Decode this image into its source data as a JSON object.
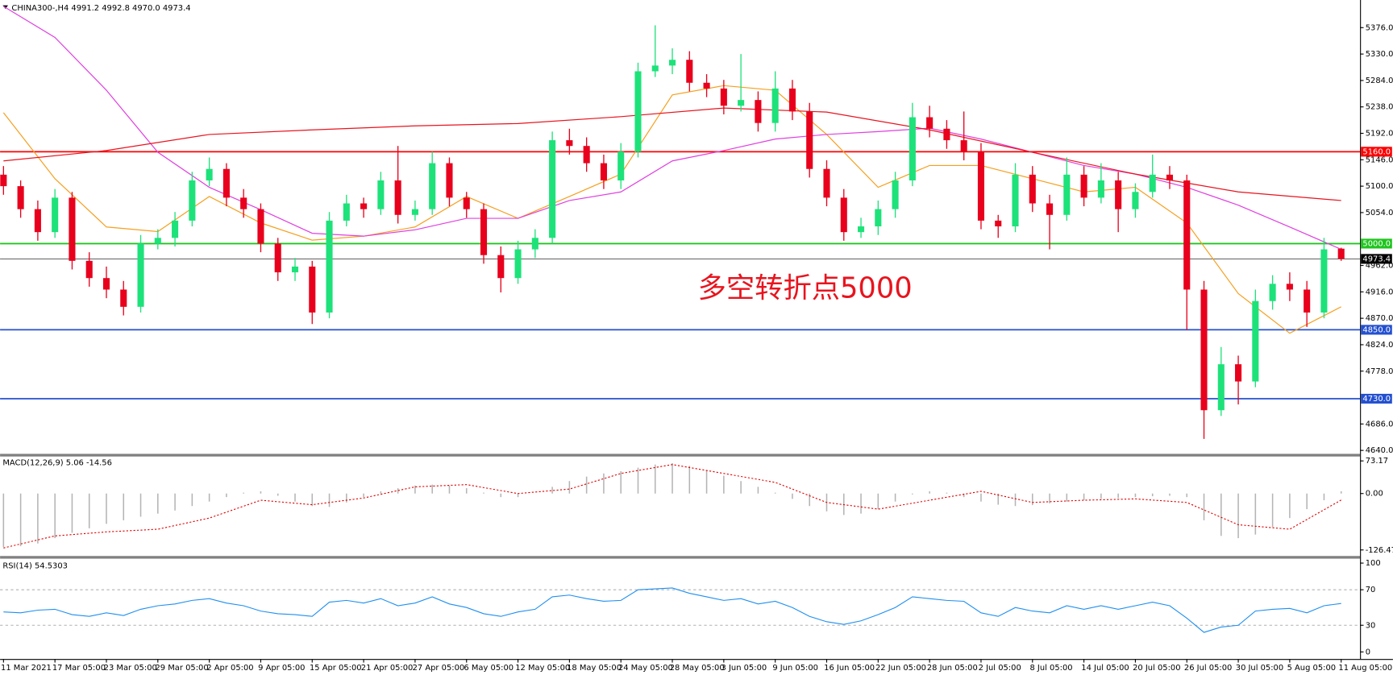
{
  "chart_data": [
    {
      "type": "candlestick",
      "title": "CHINA300-,H4  4991.2 4992.8 4970.0 4973.4",
      "annotation": "多空转折点5000",
      "annotation_color": "#e8141e",
      "up_color": "#1de27a",
      "down_color": "#e8001c",
      "xlim": [
        -0.2,
        79.1
      ],
      "ylim": [
        4634,
        5421
      ],
      "yticks": [
        {
          "value": 5376,
          "label": "5376.0"
        },
        {
          "value": 5330,
          "label": "5330.0"
        },
        {
          "value": 5284,
          "label": "5284.0"
        },
        {
          "value": 5238,
          "label": "5238.0"
        },
        {
          "value": 5192,
          "label": "5192.0"
        },
        {
          "value": 5146,
          "label": "5146.0"
        },
        {
          "value": 5100,
          "label": "5100.0"
        },
        {
          "value": 5054,
          "label": "5054.0"
        },
        {
          "value": 4962,
          "label": "4962.0"
        },
        {
          "value": 4916,
          "label": "4916.0"
        },
        {
          "value": 4870,
          "label": "4870.0"
        },
        {
          "value": 4824,
          "label": "4824.0"
        },
        {
          "value": 4778,
          "label": "4778.0"
        },
        {
          "value": 4686,
          "label": "4686.0"
        },
        {
          "value": 4640,
          "label": "4640.0"
        }
      ],
      "levels": [
        {
          "value": 5160,
          "label": "5160.0",
          "color": "#ff0000",
          "width": 1.6
        },
        {
          "value": 5000,
          "label": "5000.0",
          "color": "#1fc41f",
          "width": 1.6
        },
        {
          "value": 4973.4,
          "label": "4973.4",
          "color": "#000000",
          "width": 0.6
        },
        {
          "value": 4850,
          "label": "4850.0",
          "color": "#2450d0",
          "width": 1.6
        },
        {
          "value": 4730,
          "label": "4730.0",
          "color": "#2450d0",
          "width": 1.6
        }
      ],
      "series": [
        {
          "color": "#f5a020",
          "x": [
            0,
            3,
            6,
            9,
            12,
            15,
            18,
            21,
            24,
            27,
            30,
            33,
            36,
            39,
            42,
            45,
            48,
            51,
            54,
            57,
            60,
            63,
            66,
            69,
            72,
            75,
            78
          ],
          "values": [
            5228,
            5113,
            5029,
            5021,
            5082,
            5036,
            5006,
            5013,
            5029,
            5082,
            5044,
            5082,
            5121,
            5259,
            5275,
            5267,
            5190,
            5098,
            5136,
            5136,
            5113,
            5090,
            5098,
            5036,
            4913,
            4844,
            4890
          ]
        },
        {
          "color": "#e040e0",
          "x": [
            0,
            3,
            6,
            9,
            12,
            15,
            18,
            21,
            24,
            27,
            30,
            33,
            36,
            39,
            42,
            45,
            48,
            51,
            54,
            57,
            60,
            63,
            66,
            69,
            72,
            75,
            78
          ],
          "values": [
            5413,
            5359,
            5267,
            5159,
            5098,
            5059,
            5018,
            5013,
            5024,
            5044,
            5044,
            5075,
            5090,
            5144,
            5162,
            5182,
            5190,
            5195,
            5201,
            5182,
            5159,
            5136,
            5121,
            5098,
            5067,
            5029,
            4990
          ]
        },
        {
          "color": "#e8141e",
          "x": [
            0,
            6,
            12,
            18,
            24,
            30,
            36,
            42,
            48,
            54,
            60,
            66,
            72,
            78
          ],
          "values": [
            5144,
            5162,
            5190,
            5198,
            5205,
            5209,
            5221,
            5236,
            5229,
            5198,
            5159,
            5121,
            5090,
            5075
          ]
        }
      ],
      "candles": [
        [
          5120,
          5135,
          5085,
          5100
        ],
        [
          5100,
          5110,
          5045,
          5060
        ],
        [
          5060,
          5075,
          5005,
          5020
        ],
        [
          5020,
          5095,
          5010,
          5080
        ],
        [
          5080,
          5090,
          4955,
          4970
        ],
        [
          4970,
          4985,
          4925,
          4940
        ],
        [
          4940,
          4960,
          4905,
          4920
        ],
        [
          4920,
          4935,
          4875,
          4890
        ],
        [
          4890,
          5015,
          4880,
          5000
        ],
        [
          5000,
          5025,
          4990,
          5010
        ],
        [
          5010,
          5055,
          4995,
          5040
        ],
        [
          5040,
          5125,
          5030,
          5110
        ],
        [
          5110,
          5150,
          5100,
          5130
        ],
        [
          5130,
          5140,
          5065,
          5080
        ],
        [
          5080,
          5095,
          5045,
          5060
        ],
        [
          5060,
          5070,
          4985,
          5000
        ],
        [
          5000,
          5010,
          4935,
          4950
        ],
        [
          4950,
          4975,
          4935,
          4960
        ],
        [
          4960,
          4970,
          4860,
          4880
        ],
        [
          4880,
          5055,
          4870,
          5040
        ],
        [
          5040,
          5085,
          5030,
          5070
        ],
        [
          5070,
          5080,
          5045,
          5060
        ],
        [
          5060,
          5125,
          5050,
          5110
        ],
        [
          5110,
          5170,
          5035,
          5050
        ],
        [
          5050,
          5075,
          5040,
          5060
        ],
        [
          5060,
          5160,
          5050,
          5140
        ],
        [
          5140,
          5150,
          5065,
          5080
        ],
        [
          5080,
          5090,
          5045,
          5060
        ],
        [
          5060,
          5070,
          4965,
          4980
        ],
        [
          4980,
          4995,
          4915,
          4940
        ],
        [
          4940,
          5005,
          4930,
          4990
        ],
        [
          4990,
          5025,
          4975,
          5010
        ],
        [
          5010,
          5195,
          5000,
          5180
        ],
        [
          5180,
          5200,
          5155,
          5170
        ],
        [
          5170,
          5185,
          5125,
          5140
        ],
        [
          5140,
          5155,
          5095,
          5110
        ],
        [
          5110,
          5175,
          5095,
          5160
        ],
        [
          5160,
          5315,
          5150,
          5300
        ],
        [
          5300,
          5380,
          5290,
          5310
        ],
        [
          5310,
          5340,
          5295,
          5320
        ],
        [
          5320,
          5335,
          5265,
          5280
        ],
        [
          5280,
          5295,
          5255,
          5270
        ],
        [
          5270,
          5285,
          5225,
          5240
        ],
        [
          5240,
          5330,
          5230,
          5250
        ],
        [
          5250,
          5265,
          5195,
          5210
        ],
        [
          5210,
          5300,
          5195,
          5270
        ],
        [
          5270,
          5285,
          5215,
          5230
        ],
        [
          5230,
          5245,
          5115,
          5130
        ],
        [
          5130,
          5145,
          5065,
          5080
        ],
        [
          5080,
          5095,
          5005,
          5020
        ],
        [
          5020,
          5045,
          5010,
          5030
        ],
        [
          5030,
          5075,
          5015,
          5060
        ],
        [
          5060,
          5125,
          5045,
          5110
        ],
        [
          5110,
          5245,
          5100,
          5220
        ],
        [
          5220,
          5240,
          5185,
          5200
        ],
        [
          5200,
          5215,
          5165,
          5180
        ],
        [
          5180,
          5230,
          5145,
          5160
        ],
        [
          5160,
          5175,
          5025,
          5040
        ],
        [
          5040,
          5050,
          5010,
          5030
        ],
        [
          5030,
          5140,
          5020,
          5120
        ],
        [
          5120,
          5135,
          5055,
          5070
        ],
        [
          5070,
          5085,
          4990,
          5050
        ],
        [
          5050,
          5150,
          5040,
          5120
        ],
        [
          5120,
          5135,
          5065,
          5080
        ],
        [
          5080,
          5140,
          5070,
          5110
        ],
        [
          5110,
          5125,
          5020,
          5060
        ],
        [
          5060,
          5105,
          5045,
          5090
        ],
        [
          5090,
          5155,
          5080,
          5120
        ],
        [
          5120,
          5135,
          5095,
          5110
        ],
        [
          5110,
          5120,
          4850,
          4920
        ],
        [
          4920,
          4935,
          4660,
          4710
        ],
        [
          4710,
          4820,
          4700,
          4790
        ],
        [
          4790,
          4805,
          4720,
          4760
        ],
        [
          4760,
          4920,
          4750,
          4900
        ],
        [
          4900,
          4945,
          4885,
          4930
        ],
        [
          4930,
          4950,
          4900,
          4920
        ],
        [
          4920,
          4935,
          4855,
          4880
        ],
        [
          4880,
          5010,
          4870,
          4990
        ],
        [
          4991.2,
          4992.8,
          4970.0,
          4973.4
        ]
      ]
    },
    {
      "type": "macd",
      "title": "MACD(12,26,9) 5.06 -14.56",
      "xlim": [
        -0.2,
        79.1
      ],
      "ylim": [
        -140,
        83
      ],
      "yticks": [
        {
          "value": 73.17,
          "label": "73.17"
        },
        {
          "value": 0,
          "label": "0.00"
        },
        {
          "value": -126.47,
          "label": "-126.47"
        }
      ],
      "series": [
        {
          "type": "bar",
          "color": "#b4b4b4",
          "values": [
            -120,
            -118,
            -112,
            -100,
            -88,
            -78,
            -68,
            -60,
            -52,
            -45,
            -38,
            -28,
            -18,
            -8,
            2,
            5,
            -5,
            -18,
            -28,
            -30,
            -20,
            -8,
            5,
            12,
            18,
            20,
            18,
            12,
            2,
            -8,
            -8,
            0,
            15,
            28,
            38,
            45,
            50,
            58,
            65,
            68,
            62,
            52,
            40,
            28,
            15,
            2,
            -12,
            -28,
            -40,
            -48,
            -45,
            -35,
            -18,
            -2,
            5,
            2,
            -8,
            -18,
            -25,
            -28,
            -26,
            -22,
            -18,
            -15,
            -12,
            -10,
            -8,
            -6,
            -5,
            -8,
            -60,
            -95,
            -100,
            -92,
            -75,
            -55,
            -35,
            -15,
            5.06
          ]
        },
        {
          "type": "line",
          "color": "#e00000",
          "dash": true,
          "x": [
            0,
            3,
            6,
            9,
            12,
            15,
            18,
            21,
            24,
            27,
            30,
            33,
            36,
            39,
            42,
            45,
            48,
            51,
            54,
            57,
            60,
            63,
            66,
            69,
            72,
            75,
            78
          ],
          "values": [
            -122,
            -95,
            -86,
            -80,
            -55,
            -15,
            -25,
            -10,
            15,
            20,
            0,
            10,
            45,
            65,
            45,
            25,
            -20,
            -35,
            -15,
            5,
            -20,
            -15,
            -12,
            -20,
            -70,
            -80,
            -14.56
          ]
        }
      ]
    },
    {
      "type": "line",
      "title": "RSI(14) 54.5303",
      "xlim": [
        -0.2,
        79.1
      ],
      "ylim": [
        -8,
        104
      ],
      "yticks": [
        100,
        70,
        30,
        0
      ],
      "dashed_levels": [
        70,
        30
      ],
      "xticks": [
        {
          "value": 0,
          "label": "11 Mar 2021"
        },
        {
          "value": 3,
          "label": "17 Mar 05:00"
        },
        {
          "value": 6,
          "label": "23 Mar 05:00"
        },
        {
          "value": 9,
          "label": "29 Mar 05:00"
        },
        {
          "value": 12,
          "label": "2 Apr 05:00"
        },
        {
          "value": 15,
          "label": "9 Apr 05:00"
        },
        {
          "value": 18,
          "label": "15 Apr 05:00"
        },
        {
          "value": 21,
          "label": "21 Apr 05:00"
        },
        {
          "value": 24,
          "label": "27 Apr 05:00"
        },
        {
          "value": 27,
          "label": "6 May 05:00"
        },
        {
          "value": 30,
          "label": "12 May 05:00"
        },
        {
          "value": 33,
          "label": "18 May 05:00"
        },
        {
          "value": 36,
          "label": "24 May 05:00"
        },
        {
          "value": 39,
          "label": "28 May 05:00"
        },
        {
          "value": 42,
          "label": "3 Jun 05:00"
        },
        {
          "value": 45,
          "label": "9 Jun 05:00"
        },
        {
          "value": 48,
          "label": "16 Jun 05:00"
        },
        {
          "value": 51,
          "label": "22 Jun 05:00"
        },
        {
          "value": 54,
          "label": "28 Jun 05:00"
        },
        {
          "value": 57,
          "label": "2 Jul 05:00"
        },
        {
          "value": 60,
          "label": "8 Jul 05:00"
        },
        {
          "value": 63,
          "label": "14 Jul 05:00"
        },
        {
          "value": 66,
          "label": "20 Jul 05:00"
        },
        {
          "value": 69,
          "label": "26 Jul 05:00"
        },
        {
          "value": 72,
          "label": "30 Jul 05:00"
        },
        {
          "value": 75,
          "label": "5 Aug 05:00"
        },
        {
          "value": 78,
          "label": "11 Aug 05:00"
        }
      ],
      "series": [
        {
          "color": "#1e8ff0",
          "values": [
            45,
            44,
            47,
            48,
            42,
            40,
            44,
            41,
            48,
            52,
            54,
            58,
            60,
            55,
            52,
            46,
            43,
            42,
            40,
            56,
            58,
            55,
            60,
            52,
            55,
            62,
            54,
            50,
            43,
            40,
            45,
            48,
            62,
            64,
            60,
            57,
            58,
            70,
            71,
            72,
            66,
            62,
            58,
            60,
            54,
            57,
            50,
            40,
            34,
            31,
            35,
            42,
            50,
            62,
            60,
            58,
            57,
            44,
            40,
            50,
            46,
            44,
            52,
            48,
            52,
            48,
            52,
            56,
            52,
            38,
            22,
            28,
            30,
            46,
            48,
            49,
            44,
            52,
            54.5303
          ]
        }
      ]
    }
  ]
}
